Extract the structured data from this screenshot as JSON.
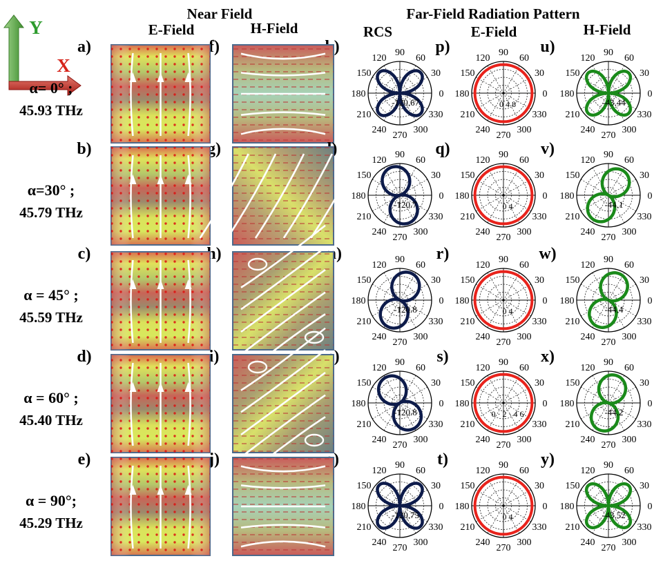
{
  "headers": {
    "near_field": "Near Field",
    "near_e": "E-Field",
    "near_h": "H-Field",
    "far_field": "Far-Field Radiation Pattern",
    "rcs": "RCS",
    "far_e": "E-Field",
    "far_h": "H-Field"
  },
  "axes": {
    "y": "Y",
    "x": "X"
  },
  "colors": {
    "rcs": "#0d1b4a",
    "far_e": "#e8231c",
    "far_h": "#1a8a1a",
    "axis_y": "#2e9c2e",
    "axis_x": "#d6241b"
  },
  "angle_labels": [
    "0",
    "30",
    "60",
    "90",
    "120",
    "150",
    "180",
    "210",
    "240",
    "270",
    "300",
    "330"
  ],
  "rows": [
    {
      "alpha_label": "α= 0° ;",
      "freq_label": "45.93 THz",
      "alpha_deg": 0,
      "panels": [
        "a)",
        "f)",
        "k)",
        "p)",
        "u)"
      ],
      "rcs_center": "-120.67",
      "e_center": "0  4   8",
      "h_center": "-43.44"
    },
    {
      "alpha_label": "α=30° ;",
      "freq_label": "45.79 THz",
      "alpha_deg": 30,
      "panels": [
        "b)",
        "g)",
        "l)",
        "q)",
        "v)"
      ],
      "rcs_center": "-120.7",
      "e_center": "0  4",
      "h_center": "-44.1"
    },
    {
      "alpha_label": "α = 45° ;",
      "freq_label": "45.59 THz",
      "alpha_deg": 45,
      "panels": [
        "c)",
        "h)",
        "m)",
        "r)",
        "w)"
      ],
      "rcs_center": "-120.8",
      "e_center": "0  4",
      "h_center": "-44.4"
    },
    {
      "alpha_label": "α = 60° ;",
      "freq_label": "45.40 THz",
      "alpha_deg": 60,
      "panels": [
        "d)",
        "i)",
        "n)",
        "s)",
        "x)"
      ],
      "rcs_center": "-120.8",
      "e_center": "0 · 2 · 4   6",
      "h_center": "-44.2"
    },
    {
      "alpha_label": "α = 90°;",
      "freq_label": "45.29 THz",
      "alpha_deg": 90,
      "panels": [
        "e)",
        "j)",
        "o)",
        "t)",
        "y)"
      ],
      "rcs_center": "-120.75",
      "e_center": "0  4",
      "h_center": "-43.52"
    }
  ]
}
